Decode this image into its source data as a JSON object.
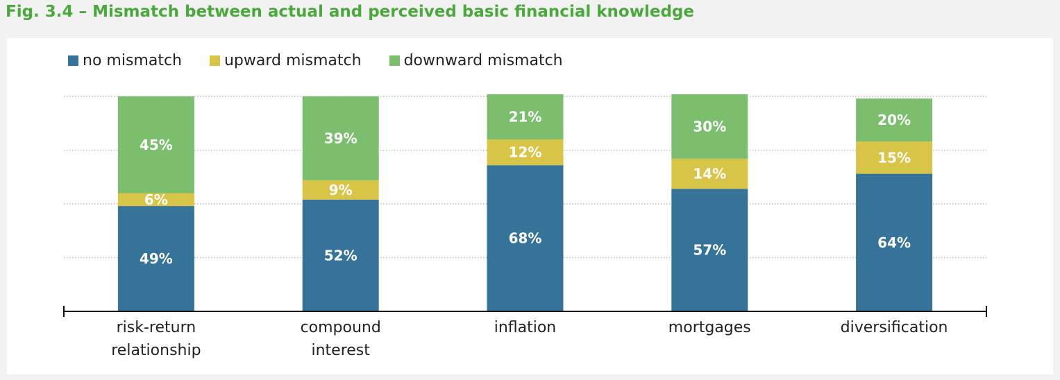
{
  "title": "Fig. 3.4 – Mismatch between actual and perceived basic financial knowledge",
  "colors": {
    "no_mismatch": "#357398",
    "upward_mismatch": "#d8c447",
    "downward_mismatch": "#7bbf6e",
    "title": "#4aa83c"
  },
  "chart_data": {
    "type": "bar",
    "stacked": true,
    "percent_scale": true,
    "ylim": [
      0,
      100
    ],
    "grid": true,
    "legend_position": "top-left",
    "title": "",
    "xlabel": "",
    "ylabel": "",
    "categories": [
      [
        "risk-return",
        "relationship"
      ],
      [
        "compound",
        "interest"
      ],
      [
        "inflation"
      ],
      [
        "mortgages"
      ],
      [
        "diversification"
      ]
    ],
    "series": [
      {
        "name": "no mismatch",
        "color_key": "no_mismatch",
        "values": [
          49,
          52,
          68,
          57,
          64
        ],
        "labels": [
          "49%",
          "52%",
          "68%",
          "57%",
          "64%"
        ]
      },
      {
        "name": "upward mismatch",
        "color_key": "upward_mismatch",
        "values": [
          6,
          9,
          12,
          14,
          15
        ],
        "labels": [
          "6%",
          "9%",
          "12%",
          "14%",
          "15%"
        ]
      },
      {
        "name": "downward mismatch",
        "color_key": "downward_mismatch",
        "values": [
          45,
          39,
          21,
          30,
          20
        ],
        "labels": [
          "45%",
          "39%",
          "21%",
          "30%",
          "20%"
        ]
      }
    ]
  }
}
